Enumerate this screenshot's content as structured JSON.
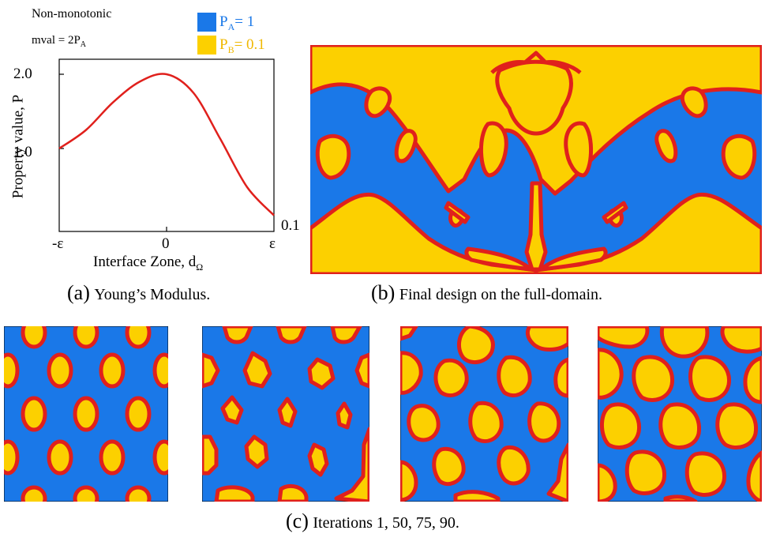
{
  "panel_a": {
    "annotation_title": "Non-monotonic",
    "annotation_mval_prefix": "mval = 2P",
    "annotation_mval_sub": "A",
    "legend": [
      {
        "prefix": "P",
        "sub": "A",
        "suffix": "= 1",
        "color": "#1a78e8"
      },
      {
        "prefix": "P",
        "sub": "B",
        "suffix": "= 0.1",
        "color": "#fcd000"
      }
    ],
    "ylabel": "Property value, P",
    "xlabel_prefix": "Interface Zone, d",
    "xlabel_sub": "Ω",
    "y_ticks": [
      "2.0",
      "1.0"
    ],
    "right_value_label": "0.1",
    "x_ticks": [
      "-ε",
      "0",
      "ε"
    ],
    "caption_letter": "(a)",
    "caption_text": "Young’s Modulus."
  },
  "chart_data": {
    "type": "line",
    "x": [
      -1,
      -0.75,
      -0.5,
      -0.25,
      0,
      0.25,
      0.5,
      0.75,
      1
    ],
    "series": [
      {
        "values": [
          1.0,
          1.25,
          1.62,
          1.9,
          2.0,
          1.75,
          1.13,
          0.48,
          0.1
        ],
        "color": "#e0201c"
      }
    ],
    "xlabel": "Interface Zone, dΩ",
    "ylabel": "Property value, P",
    "xlim": [
      -1,
      1
    ],
    "ylim": [
      0.1,
      2.0
    ]
  },
  "panel_b": {
    "caption_letter": "(b)",
    "caption_text": "Final design on the full-domain."
  },
  "panel_c": {
    "caption_letter": "(c)",
    "caption_text": "Iterations 1, 50, 75, 90."
  },
  "colors": {
    "blue": "#1a78e8",
    "yellow": "#fcd000",
    "red": "#e0201c"
  }
}
